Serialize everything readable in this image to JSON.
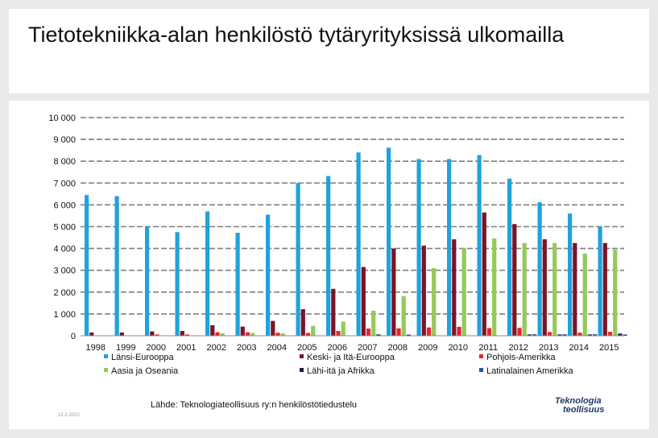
{
  "slide": {
    "title": "Tietotekniikka-alan henkilöstö tytäryrityksissä ulkomailla",
    "source": "Lähde: Teknologiateollisuus ry:n henkilöstötiedustelu",
    "date": "12.2.2022",
    "logo": {
      "line1": "Teknologia",
      "line2": "teollisuus"
    }
  },
  "chart_data": {
    "type": "bar",
    "title": "",
    "xlabel": "",
    "ylabel": "",
    "ylim": [
      0,
      10000
    ],
    "y_ticks": [
      0,
      1000,
      2000,
      3000,
      4000,
      5000,
      6000,
      7000,
      8000,
      9000,
      10000
    ],
    "y_tick_labels": [
      "0",
      "1 000",
      "2 000",
      "3 000",
      "4 000",
      "5 000",
      "6 000",
      "7 000",
      "8 000",
      "9 000",
      "10 000"
    ],
    "grid": "horizontal-dashed",
    "legend_position": "bottom",
    "categories": [
      "1998",
      "1999",
      "2000",
      "2001",
      "2002",
      "2003",
      "2004",
      "2005",
      "2006",
      "2007",
      "2008",
      "2009",
      "2010",
      "2011",
      "2012",
      "2013",
      "2014",
      "2015"
    ],
    "series": [
      {
        "name": "Länsi-Eurooppa",
        "color": "#1fa3db",
        "values": [
          6450,
          6400,
          5000,
          4750,
          5700,
          4720,
          5550,
          7000,
          7320,
          8400,
          8620,
          8100,
          8100,
          8280,
          7200,
          6120,
          5600,
          5000
        ]
      },
      {
        "name": "Keski- ja Itä-Eurooppa",
        "color": "#7b1428",
        "values": [
          150,
          150,
          200,
          220,
          480,
          420,
          680,
          1220,
          2150,
          3150,
          4000,
          4130,
          4420,
          5650,
          5120,
          4420,
          4250,
          4250
        ]
      },
      {
        "name": "Pohjois-Amerikka",
        "color": "#e3262a",
        "values": [
          0,
          0,
          60,
          60,
          160,
          160,
          140,
          130,
          220,
          330,
          340,
          380,
          410,
          350,
          360,
          170,
          140,
          180
        ]
      },
      {
        "name": "Aasia ja Oseania",
        "color": "#95c95a",
        "values": [
          0,
          0,
          0,
          0,
          120,
          130,
          110,
          450,
          650,
          1150,
          1820,
          3100,
          4020,
          4460,
          4250,
          4250,
          3770,
          3950
        ]
      },
      {
        "name": "Lähi-itä ja Afrikka",
        "color": "#10233f",
        "values": [
          0,
          0,
          0,
          0,
          0,
          0,
          0,
          0,
          0,
          60,
          50,
          0,
          0,
          0,
          60,
          60,
          60,
          100
        ]
      },
      {
        "name": "Latinalainen Amerikka",
        "color": "#1f5d9e",
        "values": [
          0,
          0,
          0,
          0,
          0,
          0,
          0,
          0,
          0,
          0,
          0,
          0,
          0,
          0,
          70,
          70,
          70,
          60
        ]
      }
    ]
  }
}
